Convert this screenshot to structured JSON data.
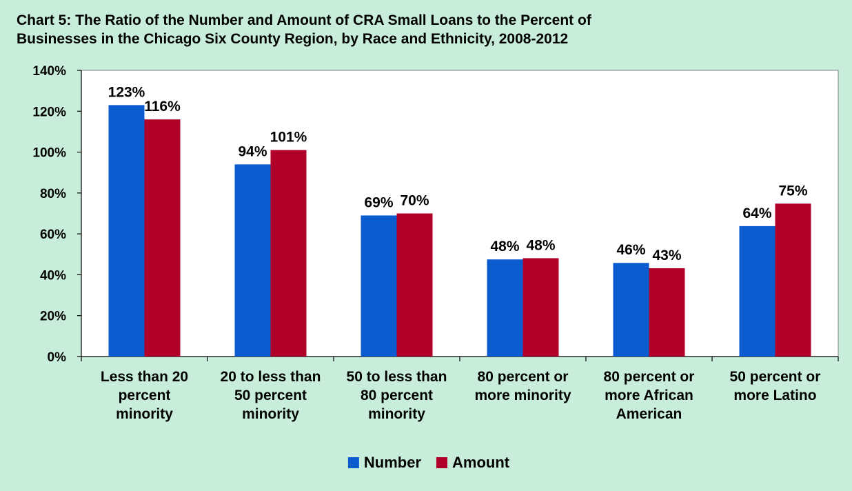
{
  "chart_data": {
    "type": "bar",
    "title_lines": [
      "Chart 5: The Ratio of the Number and Amount of CRA Small Loans to the Percent of",
      "Businesses in the Chicago Six County Region, by Race and Ethnicity, 2008-2012"
    ],
    "categories": [
      [
        "Less than 20",
        "percent",
        "minority"
      ],
      [
        "20 to less than",
        "50 percent",
        "minority"
      ],
      [
        "50 to less than",
        "80 percent",
        "minority"
      ],
      [
        "80 percent or",
        "more minority"
      ],
      [
        "80 percent or",
        "more African",
        "American"
      ],
      [
        "50 percent or",
        "more Latino"
      ]
    ],
    "series": [
      {
        "name": "Number",
        "color": "#0b5ccf",
        "values": [
          123,
          94,
          69,
          47.5,
          45.8,
          63.8
        ],
        "labels": [
          "123%",
          "94%",
          "69%",
          "48%",
          "46%",
          "64%"
        ]
      },
      {
        "name": "Amount",
        "color": "#b0002a",
        "values": [
          116,
          101,
          70,
          48.1,
          43.2,
          74.8
        ],
        "labels": [
          "116%",
          "101%",
          "70%",
          "48%",
          "43%",
          "75%"
        ]
      }
    ],
    "ylim": [
      0,
      140
    ],
    "yticks": [
      0,
      20,
      40,
      60,
      80,
      100,
      120,
      140
    ],
    "ytick_labels": [
      "0%",
      "20%",
      "40%",
      "60%",
      "80%",
      "100%",
      "120%",
      "140%"
    ],
    "grid": false,
    "legend_position": "bottom-center",
    "plot_background": "#ffffff",
    "page_background": "#c8eedb"
  }
}
